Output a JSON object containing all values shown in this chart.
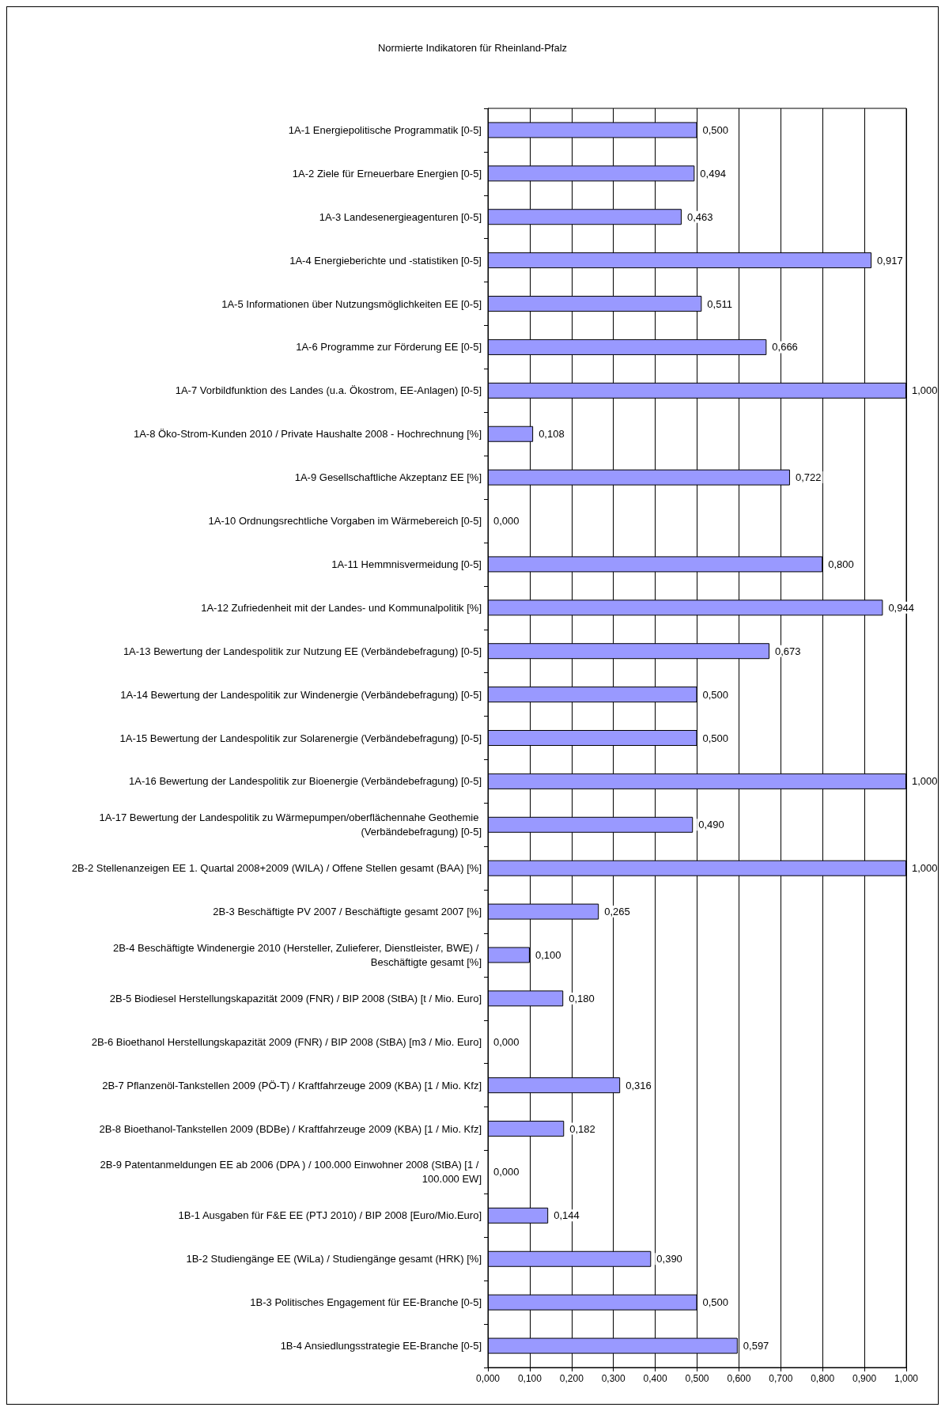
{
  "chart_data": {
    "type": "bar",
    "orientation": "horizontal",
    "title": "Normierte Indikatoren für Rheinland-Pfalz",
    "categories": [
      "1A-1 Energiepolitische Programmatik [0-5]",
      "1A-2 Ziele für Erneuerbare Energien [0-5]",
      "1A-3 Landesenergieagenturen [0-5]",
      "1A-4 Energieberichte und -statistiken [0-5]",
      "1A-5 Informationen über Nutzungsmöglichkeiten EE [0-5]",
      "1A-6 Programme zur Förderung EE [0-5]",
      "1A-7 Vorbildfunktion des Landes (u.a. Ökostrom, EE-Anlagen) [0-5]",
      "1A-8 Öko-Strom-Kunden 2010 / Private Haushalte 2008 - Hochrechnung [%]",
      "1A-9 Gesellschaftliche Akzeptanz EE [%]",
      "1A-10 Ordnungsrechtliche Vorgaben im Wärmebereich [0-5]",
      "1A-11 Hemmnisvermeidung [0-5]",
      "1A-12 Zufriedenheit mit der Landes- und Kommunalpolitik [%]",
      "1A-13 Bewertung der Landespolitik zur Nutzung EE (Verbändebefragung) [0-5]",
      "1A-14 Bewertung der Landespolitik zur Windenergie (Verbändebefragung) [0-5]",
      "1A-15 Bewertung der Landespolitik zur Solarenergie (Verbändebefragung) [0-5]",
      "1A-16 Bewertung der Landespolitik zur Bioenergie (Verbändebefragung) [0-5]",
      "1A-17 Bewertung der Landespolitik zu Wärmepumpen/oberflächennahe Geothemie (Verbändebefragung) [0-5]",
      "2B-2 Stellenanzeigen EE 1. Quartal 2008+2009 (WILA) / Offene Stellen gesamt (BAA) [%]",
      "2B-3 Beschäftigte PV 2007 / Beschäftigte gesamt 2007 [%]",
      "2B-4 Beschäftigte Windenergie 2010 (Hersteller, Zulieferer, Dienstleister, BWE) / Beschäftigte gesamt [%]",
      "2B-5 Biodiesel Herstellungskapazität 2009 (FNR) / BIP 2008 (StBA) [t / Mio. Euro]",
      "2B-6 Bioethanol Herstellungskapazität 2009 (FNR) / BIP 2008 (StBA) [m3 / Mio. Euro]",
      "2B-7 Pflanzenöl-Tankstellen 2009 (PÖ-T) / Kraftfahrzeuge 2009 (KBA) [1 / Mio. Kfz]",
      "2B-8 Bioethanol-Tankstellen 2009 (BDBe) / Kraftfahrzeuge 2009 (KBA) [1 / Mio. Kfz]",
      "2B-9 Patentanmeldungen EE ab 2006 (DPA ) / 100.000 Einwohner 2008 (StBA) [1 / 100.000 EW]",
      "1B-1 Ausgaben für F&E EE (PTJ 2010) / BIP 2008 [Euro/Mio.Euro]",
      "1B-2 Studiengänge EE (WiLa) / Studiengänge gesamt (HRK) [%]",
      "1B-3 Politisches Engagement für EE-Branche [0-5]",
      "1B-4 Ansiedlungsstrategie EE-Branche [0-5]"
    ],
    "values": [
      0.5,
      0.494,
      0.463,
      0.917,
      0.511,
      0.666,
      1.0,
      0.108,
      0.722,
      0.0,
      0.8,
      0.944,
      0.673,
      0.5,
      0.5,
      1.0,
      0.49,
      1.0,
      0.265,
      0.1,
      0.18,
      0.0,
      0.316,
      0.182,
      0.0,
      0.144,
      0.39,
      0.5,
      0.597
    ],
    "value_labels": [
      "0,500",
      "0,494",
      "0,463",
      "0,917",
      "0,511",
      "0,666",
      "1,000",
      "0,108",
      "0,722",
      "0,000",
      "0,800",
      "0,944",
      "0,673",
      "0,500",
      "0,500",
      "1,000",
      "0,490",
      "1,000",
      "0,265",
      "0,100",
      "0,180",
      "0,000",
      "0,316",
      "0,182",
      "0,000",
      "0,144",
      "0,390",
      "0,500",
      "0,597"
    ],
    "color": "#9999ff",
    "xlim": [
      0,
      1
    ],
    "xticks": [
      {
        "value": 0,
        "label": "0,000"
      },
      {
        "value": 0.1,
        "label": "0,100"
      },
      {
        "value": 0.2,
        "label": "0,200"
      },
      {
        "value": 0.3,
        "label": "0,300"
      },
      {
        "value": 0.4,
        "label": "0,400"
      },
      {
        "value": 0.5,
        "label": "0,500"
      },
      {
        "value": 0.6,
        "label": "0,600"
      },
      {
        "value": 0.7,
        "label": "0,700"
      },
      {
        "value": 0.8,
        "label": "0,800"
      },
      {
        "value": 0.9,
        "label": "0,900"
      },
      {
        "value": 1,
        "label": "1,000"
      }
    ],
    "grid": "x"
  }
}
